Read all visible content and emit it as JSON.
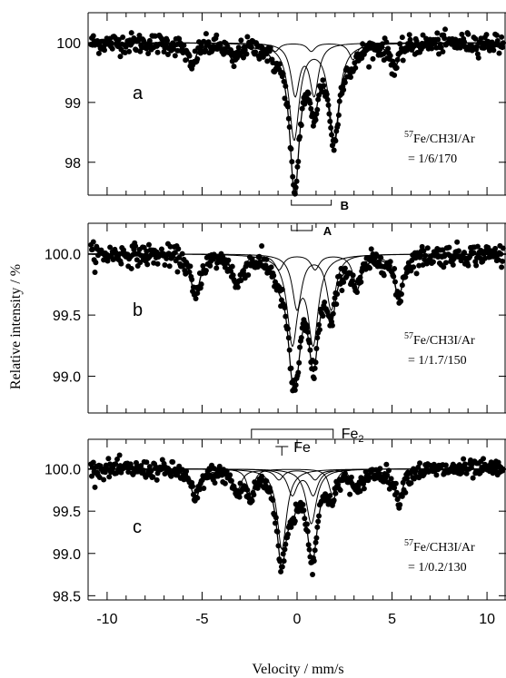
{
  "chart_data": {
    "type": "scatter",
    "xlabel": "Velocity / mm/s",
    "ylabel": "Relative intensity / %",
    "xlim": [
      -11,
      11
    ],
    "x_ticks": [
      -10,
      -5,
      0,
      5,
      10
    ],
    "panels": [
      {
        "letter": "a",
        "ylim": [
          97.45,
          100.5
        ],
        "y_ticks": [
          98,
          99,
          100
        ],
        "y_tick_labels": [
          "98",
          "99",
          "100"
        ],
        "annotation_sup": "57",
        "annotation_line1": "Fe/CH3I/Ar",
        "annotation_line2": "= 1/6/170",
        "hyperfine": [
          {
            "center": -0.3,
            "height": 0.4,
            "width": 0.5,
            "split": 10.8
          },
          {
            "center": 0.9,
            "height": 1.6,
            "width": 0.65,
            "split": 2.1
          },
          {
            "center": 0.4,
            "height": 0.85,
            "width": 0.55,
            "split": 1.0
          }
        ],
        "bracket_B": {
          "label": "B",
          "x1": -0.3,
          "x2": 1.8
        },
        "bracket_A": {
          "label": "A",
          "x1": -0.3,
          "x2": 0.8
        }
      },
      {
        "letter": "b",
        "ylim": [
          98.7,
          100.25
        ],
        "y_ticks": [
          99.0,
          99.5,
          100.0
        ],
        "y_tick_labels": [
          "99.0",
          "99.5",
          "100.0"
        ],
        "annotation_sup": "57",
        "annotation_line1": "Fe/CH3I/Ar",
        "annotation_line2": "= 1/1.7/150",
        "hyperfine": [
          {
            "center": -0.1,
            "height": 0.35,
            "width": 0.55,
            "split": 10.8
          },
          {
            "center": 0.3,
            "height": 0.7,
            "width": 0.65,
            "split": 1.1
          },
          {
            "center": 0.9,
            "height": 0.45,
            "width": 0.6,
            "split": 1.8
          }
        ]
      },
      {
        "letter": "c",
        "ylim": [
          98.45,
          100.35
        ],
        "y_ticks": [
          98.5,
          99.0,
          99.5,
          100.0
        ],
        "y_tick_labels": [
          "98.5",
          "99.0",
          "99.5",
          "100.0"
        ],
        "annotation_sup": "57",
        "annotation_line1": "Fe/CH3I/Ar",
        "annotation_line2": "= 1/0.2/130",
        "hyperfine": [
          {
            "center": -0.1,
            "height": 0.35,
            "width": 0.55,
            "split": 10.8
          },
          {
            "center": -0.3,
            "height": 0.3,
            "width": 0.45,
            "split": 4.3
          },
          {
            "center": -0.8,
            "height": 0.95,
            "width": 0.6,
            "split": 0.0
          },
          {
            "center": 0.75,
            "height": 0.65,
            "width": 0.65,
            "split": 0.0
          },
          {
            "center": 0.3,
            "height": 0.3,
            "width": 0.6,
            "split": 1.1
          }
        ],
        "bracket_Fe2": {
          "label": "Fe",
          "sub": "2",
          "x1": -2.4,
          "x2": 1.9
        },
        "bracket_Fe": {
          "label": "Fe",
          "x": -0.8
        }
      }
    ]
  }
}
